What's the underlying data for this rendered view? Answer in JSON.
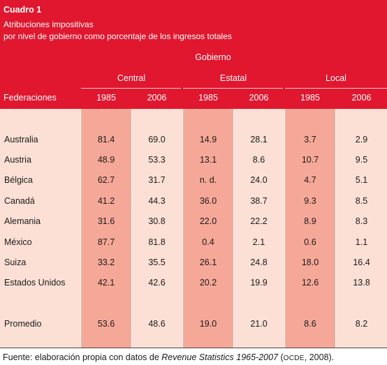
{
  "title": "Cuadro 1",
  "subtitle_line1": "Atribuciones impositivas",
  "subtitle_line2": "por nivel de gobierno como porcentaje de los ingresos totales",
  "group_header": "Gobierno",
  "levels": [
    "Central",
    "Estatal",
    "Local"
  ],
  "first_column_header": "Federaciones",
  "year_headers": [
    "1985",
    "2006",
    "1985",
    "2006",
    "1985",
    "2006"
  ],
  "rows": [
    {
      "name": "Australia",
      "values": [
        "81.4",
        "69.0",
        "14.9",
        "28.1",
        "3.7",
        "2.9"
      ]
    },
    {
      "name": "Austria",
      "values": [
        "48.9",
        "53.3",
        "13.1",
        "8.6",
        "10.7",
        "9.5"
      ]
    },
    {
      "name": "Bélgica",
      "values": [
        "62.7",
        "31.7",
        "n. d.",
        "24.0",
        "4.7",
        "5.1"
      ]
    },
    {
      "name": "Canadá",
      "values": [
        "41.2",
        "44.3",
        "36.0",
        "38.7",
        "9.3",
        "8.5"
      ]
    },
    {
      "name": "Alemania",
      "values": [
        "31.6",
        "30.8",
        "22.0",
        "22.2",
        "8.9",
        "8.3"
      ]
    },
    {
      "name": "México",
      "values": [
        "87.7",
        "81.8",
        "0.4",
        "2.1",
        "0.6",
        "1.1"
      ]
    },
    {
      "name": "Suiza",
      "values": [
        "33.2",
        "35.5",
        "26.1",
        "24.8",
        "18.0",
        "16.4"
      ]
    },
    {
      "name": "Estados Unidos",
      "values": [
        "42.1",
        "42.6",
        "20.2",
        "19.9",
        "12.6",
        "13.8"
      ]
    }
  ],
  "average_row": {
    "name": "Promedio",
    "values": [
      "53.6",
      "48.6",
      "19.0",
      "21.0",
      "8.6",
      "8.2"
    ]
  },
  "source": {
    "prefix": "Fuente: elaboración propia con datos de ",
    "publication": "Revenue Statistics 1965-2007",
    "mid": " (",
    "org": "OCDE",
    "suffix": ", 2008)."
  },
  "colors": {
    "header_red": "#e0172f",
    "body_light": "#fce0d5",
    "body_band": "#f6a898"
  }
}
